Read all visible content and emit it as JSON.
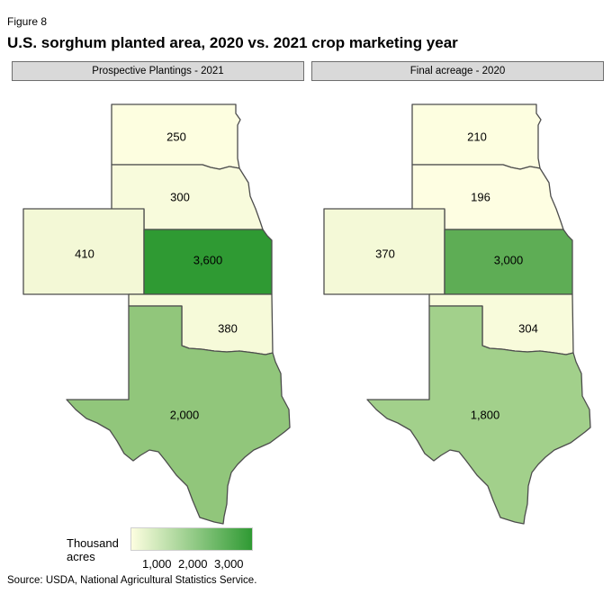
{
  "figure_label": "Figure 8",
  "title": "U.S. sorghum planted area, 2020 vs. 2021 crop marketing year",
  "panels": [
    {
      "header": "Prospective Plantings - 2021",
      "states": [
        {
          "id": "SD",
          "value": 250,
          "label": "250",
          "color": "#fdfee0"
        },
        {
          "id": "NE",
          "value": 300,
          "label": "300",
          "color": "#f8fbdc"
        },
        {
          "id": "CO",
          "value": 410,
          "label": "410",
          "color": "#f3f8d6"
        },
        {
          "id": "KS",
          "value": 3600,
          "label": "3,600",
          "color": "#2f9a33"
        },
        {
          "id": "OK",
          "value": 380,
          "label": "380",
          "color": "#f6fad9"
        },
        {
          "id": "TX",
          "value": 2000,
          "label": "2,000",
          "color": "#91c67b"
        }
      ]
    },
    {
      "header": "Final acreage - 2020",
      "states": [
        {
          "id": "SD",
          "value": 210,
          "label": "210",
          "color": "#fdfee0"
        },
        {
          "id": "NE",
          "value": 196,
          "label": "196",
          "color": "#fefee2"
        },
        {
          "id": "CO",
          "value": 370,
          "label": "370",
          "color": "#f4f9d7"
        },
        {
          "id": "KS",
          "value": 3000,
          "label": "3,000",
          "color": "#5ead55"
        },
        {
          "id": "OK",
          "value": 304,
          "label": "304",
          "color": "#f8fbdb"
        },
        {
          "id": "TX",
          "value": 1800,
          "label": "1,800",
          "color": "#a2d08b"
        }
      ]
    }
  ],
  "legend": {
    "title": "Thousand acres",
    "ticks": [
      "1,000",
      "2,000",
      "3,000"
    ],
    "color_low": "#fdfee0",
    "color_high": "#2f9a33"
  },
  "source": "Source: USDA, National Agricultural Statistics Service."
}
